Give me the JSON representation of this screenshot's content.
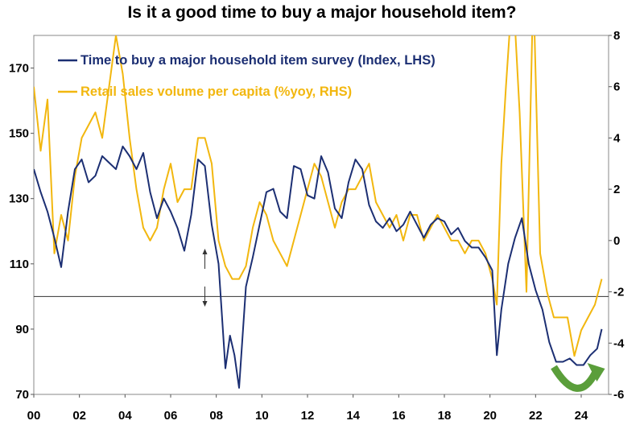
{
  "chart_data": {
    "type": "line",
    "title": "Is it a good time to buy a major household item?",
    "x_tick_labels": [
      "00",
      "02",
      "04",
      "06",
      "08",
      "10",
      "12",
      "14",
      "16",
      "18",
      "20",
      "22",
      "24"
    ],
    "x_range": [
      2000,
      2025.2
    ],
    "left_axis": {
      "ylim": [
        70,
        180
      ],
      "ticks": [
        70,
        90,
        110,
        130,
        150,
        170
      ]
    },
    "right_axis": {
      "ylim": [
        -6,
        8
      ],
      "ticks": [
        -6,
        -4,
        -2,
        0,
        2,
        4,
        6,
        8
      ]
    },
    "reference_line": {
      "axis": "left",
      "value": 100
    },
    "annotation_arrow": "up-down arrow near 2007.5",
    "green_arrow": "curved green arrow spanning 2022.8 to 2024.9",
    "series": [
      {
        "name": "Time to buy a major household item survey (Index, LHS)",
        "axis": "left",
        "color": "#1c2f73",
        "x": [
          2000.0,
          2000.3,
          2000.6,
          2000.9,
          2001.2,
          2001.5,
          2001.8,
          2002.1,
          2002.4,
          2002.7,
          2003.0,
          2003.3,
          2003.6,
          2003.9,
          2004.2,
          2004.5,
          2004.8,
          2005.1,
          2005.4,
          2005.7,
          2006.0,
          2006.3,
          2006.6,
          2006.9,
          2007.2,
          2007.5,
          2007.8,
          2008.1,
          2008.4,
          2008.6,
          2008.8,
          2009.0,
          2009.3,
          2009.6,
          2009.9,
          2010.2,
          2010.5,
          2010.8,
          2011.1,
          2011.4,
          2011.7,
          2012.0,
          2012.3,
          2012.6,
          2012.9,
          2013.2,
          2013.5,
          2013.8,
          2014.1,
          2014.4,
          2014.7,
          2015.0,
          2015.3,
          2015.6,
          2015.9,
          2016.2,
          2016.5,
          2016.8,
          2017.1,
          2017.4,
          2017.7,
          2018.0,
          2018.3,
          2018.6,
          2018.9,
          2019.2,
          2019.5,
          2019.8,
          2020.1,
          2020.3,
          2020.5,
          2020.8,
          2021.1,
          2021.4,
          2021.7,
          2022.0,
          2022.3,
          2022.6,
          2022.9,
          2023.2,
          2023.5,
          2023.8,
          2024.1,
          2024.4,
          2024.7,
          2024.9
        ],
        "values": [
          139,
          132,
          126,
          118,
          109,
          126,
          139,
          142,
          135,
          137,
          143,
          141,
          139,
          146,
          143,
          139,
          144,
          132,
          124,
          130,
          126,
          121,
          114,
          125,
          142,
          140,
          122,
          110,
          78,
          88,
          82,
          72,
          103,
          112,
          122,
          132,
          133,
          126,
          124,
          140,
          139,
          131,
          130,
          143,
          138,
          127,
          124,
          135,
          142,
          139,
          128,
          123,
          121,
          124,
          120,
          122,
          126,
          122,
          118,
          122,
          124,
          123,
          119,
          121,
          117,
          115,
          115,
          112,
          108,
          82,
          96,
          110,
          118,
          124,
          110,
          102,
          96,
          86,
          80,
          80,
          81,
          79,
          79,
          82,
          84,
          90
        ]
      },
      {
        "name": "Retail sales volume per capita (%yoy, RHS)",
        "axis": "right",
        "color": "#f2b70f",
        "x": [
          2000.0,
          2000.3,
          2000.6,
          2000.9,
          2001.2,
          2001.5,
          2001.8,
          2002.1,
          2002.4,
          2002.7,
          2003.0,
          2003.3,
          2003.6,
          2003.9,
          2004.2,
          2004.5,
          2004.8,
          2005.1,
          2005.4,
          2005.7,
          2006.0,
          2006.3,
          2006.6,
          2006.9,
          2007.2,
          2007.5,
          2007.8,
          2008.1,
          2008.4,
          2008.7,
          2009.0,
          2009.3,
          2009.6,
          2009.9,
          2010.2,
          2010.5,
          2010.8,
          2011.1,
          2011.4,
          2011.7,
          2012.0,
          2012.3,
          2012.6,
          2012.9,
          2013.2,
          2013.5,
          2013.8,
          2014.1,
          2014.4,
          2014.7,
          2015.0,
          2015.3,
          2015.6,
          2015.9,
          2016.2,
          2016.5,
          2016.8,
          2017.1,
          2017.4,
          2017.7,
          2018.0,
          2018.3,
          2018.6,
          2018.9,
          2019.2,
          2019.5,
          2019.8,
          2020.1,
          2020.3,
          2020.5,
          2020.7,
          2021.0,
          2021.3,
          2021.6,
          2021.9,
          2022.2,
          2022.5,
          2022.8,
          2023.1,
          2023.4,
          2023.7,
          2024.0,
          2024.3,
          2024.6,
          2024.9
        ],
        "values": [
          6,
          3.5,
          5.5,
          -0.5,
          1,
          0,
          2.5,
          4,
          4.5,
          5,
          4,
          6,
          8,
          6.5,
          4,
          2,
          0.5,
          0,
          0.5,
          2,
          3,
          1.5,
          2,
          2,
          4,
          4,
          3,
          0,
          -1,
          -1.5,
          -1.5,
          -1,
          0.5,
          1.5,
          1,
          0,
          -0.5,
          -1,
          0,
          1,
          2,
          3,
          2.5,
          1.5,
          0.5,
          1.5,
          2,
          2,
          2.5,
          3,
          1.5,
          1,
          0.5,
          1,
          0,
          1,
          1,
          0,
          0.5,
          1,
          0.5,
          0,
          0,
          -0.5,
          0,
          0,
          -0.5,
          -1.5,
          -2.5,
          3,
          6,
          10,
          5,
          -2,
          10,
          -0.5,
          -2,
          -3,
          -3,
          -3,
          -4.5,
          -3.5,
          -3,
          -2.5,
          -1.5
        ]
      }
    ]
  }
}
